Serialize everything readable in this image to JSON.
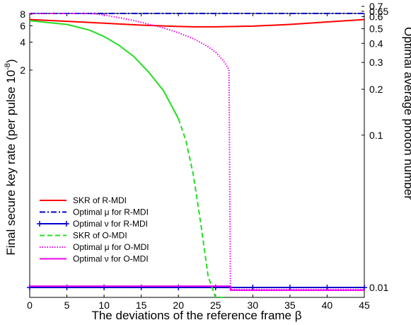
{
  "chart_data": {
    "type": "line",
    "xlabel": "The deviations of the reference frame β",
    "ylabel_left": "Final secure key rate (per pulse 10",
    "ylabel_left_exp": "-8",
    "ylabel_left_close": ")",
    "ylabel_right": "Optimal average photon number",
    "xlim": [
      0,
      45
    ],
    "xticks": [
      "0",
      "5",
      "10",
      "15",
      "20",
      "25",
      "30",
      "35",
      "40",
      "45"
    ],
    "yticks_left": [
      "8",
      "6",
      "4",
      "2"
    ],
    "yticks_right": [
      "0.7",
      "0.65",
      "0.6",
      "0.5",
      "0.4",
      "0.3",
      "0.2",
      "0.1",
      "0.01"
    ],
    "y_left_scale": "log",
    "y_right_scale": "log",
    "y_left_tick_values": [
      8,
      6,
      4,
      2
    ],
    "y_right_tick_values": [
      0.7,
      0.65,
      0.6,
      0.5,
      0.4,
      0.3,
      0.2,
      0.1,
      0.01
    ],
    "legend_position": "lower-left",
    "series": [
      {
        "name": "SKR of R-MDI",
        "axis": "left",
        "color": "#ff0000",
        "style": "solid",
        "x": [
          0,
          5,
          10,
          15,
          20,
          22,
          25,
          30,
          35,
          40,
          45
        ],
        "y": [
          7.0,
          6.7,
          6.4,
          6.1,
          5.9,
          5.85,
          5.85,
          5.95,
          6.2,
          6.6,
          7.0
        ]
      },
      {
        "name": "Optimal μ for R-MDI",
        "axis": "right",
        "color": "#0000cc",
        "style": "dashdot",
        "x": [
          0,
          2,
          2,
          6,
          6,
          9,
          9,
          11,
          11,
          12,
          12,
          14,
          14,
          20,
          20,
          31,
          31,
          33,
          33,
          35,
          35,
          39,
          39,
          40,
          40,
          42,
          42,
          43,
          43,
          45
        ],
        "y": [
          0.67,
          0.67,
          0.66,
          0.66,
          0.655,
          0.655,
          0.65,
          0.65,
          0.645,
          0.645,
          0.64,
          0.64,
          0.635,
          0.635,
          0.63,
          0.63,
          0.635,
          0.635,
          0.64,
          0.64,
          0.645,
          0.645,
          0.65,
          0.65,
          0.655,
          0.655,
          0.66,
          0.66,
          0.67,
          0.67
        ]
      },
      {
        "name": "Optimal ν for R-MDI",
        "axis": "right",
        "color": "#0000cc",
        "style": "solid-plus",
        "x": [
          0,
          5,
          10,
          15,
          20,
          25,
          30,
          35,
          40,
          45
        ],
        "y": [
          0.01,
          0.01,
          0.01,
          0.01,
          0.01,
          0.01,
          0.01,
          0.01,
          0.01,
          0.01
        ]
      },
      {
        "name": "SKR of O-MDI",
        "axis": "left",
        "color": "#22dd22",
        "style": "solid-then-dashed",
        "x": [
          0,
          5,
          8,
          10,
          12,
          14,
          16,
          18,
          20,
          21,
          22,
          23,
          24,
          25,
          26,
          26.5,
          26.7
        ],
        "y": [
          6.8,
          6.2,
          5.4,
          4.6,
          3.7,
          2.8,
          1.9,
          1.2,
          0.6,
          0.35,
          0.15,
          0.045,
          0.012,
          0.0025,
          0.0004,
          0.00012,
          3e-05
        ]
      },
      {
        "name": "Optimal μ for O-MDI",
        "axis": "right",
        "color": "#ee00ee",
        "style": "dotted",
        "x": [
          0,
          2,
          5,
          8,
          10,
          12,
          14,
          16,
          18,
          20,
          22,
          23,
          24,
          25,
          26,
          26.8,
          27,
          27.2,
          45
        ],
        "y": [
          0.66,
          0.66,
          0.65,
          0.635,
          0.615,
          0.59,
          0.565,
          0.535,
          0.505,
          0.47,
          0.43,
          0.405,
          0.38,
          0.35,
          0.31,
          0.27,
          0.0097,
          0.0097,
          0.0097
        ]
      },
      {
        "name": "Optimal ν for O-MDI",
        "axis": "right",
        "color": "#ee00ee",
        "style": "solid",
        "x": [
          0,
          27,
          27,
          45
        ],
        "y": [
          0.0102,
          0.0102,
          0.0096,
          0.0096
        ]
      }
    ]
  }
}
